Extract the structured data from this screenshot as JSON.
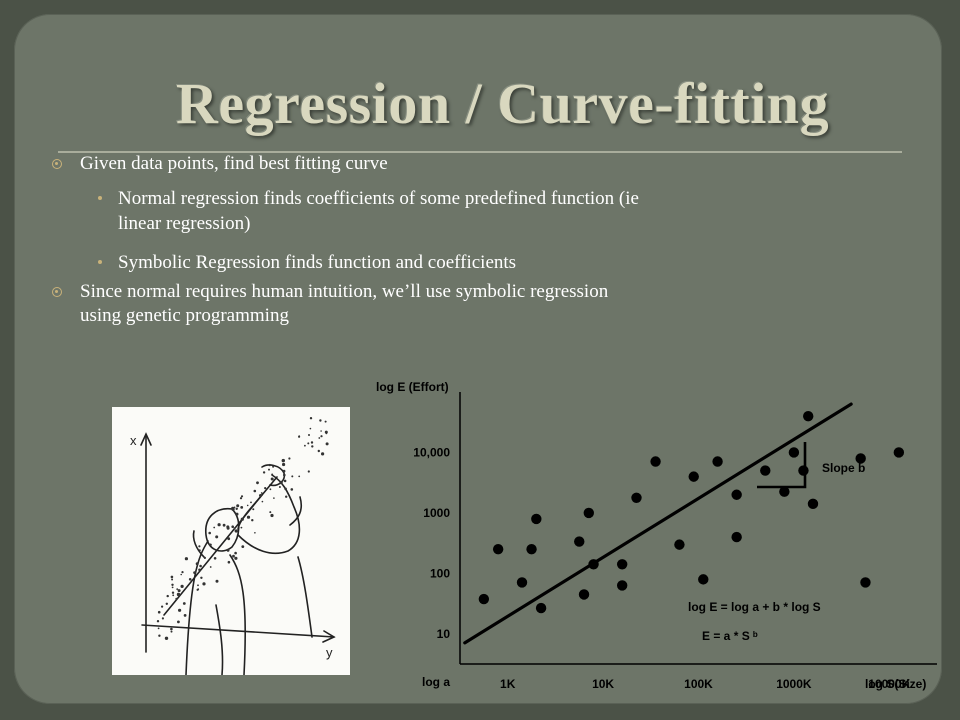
{
  "slide": {
    "title": "Regression / Curve-fitting",
    "bullets": [
      {
        "level": 1,
        "text": "Given data points, find best fitting curve"
      },
      {
        "level": 2,
        "lines": [
          "Normal regression finds coefficients of some predefined function (ie",
          "linear regression)"
        ]
      },
      {
        "level": 2,
        "lines": [
          "Symbolic Regression finds function and coefficients"
        ]
      },
      {
        "level": 1,
        "lines": [
          "Since normal requires human intuition, we’ll use symbolic regression",
          "using genetic programming"
        ]
      }
    ]
  },
  "sketch": {
    "axis_x_label": "y",
    "axis_y_label": "x"
  },
  "chart_data": {
    "type": "scatter",
    "ylabel": "log E (Effort)",
    "xlabel": "log S(Size)",
    "x_ticks": [
      "1K",
      "10K",
      "100K",
      "1000K",
      "10000K"
    ],
    "y_ticks": [
      "10,000",
      "1000",
      "100",
      "10",
      "log a"
    ],
    "annotations": [
      "Slope b",
      "log E = log a + b * log S",
      "E = a * S ᵇ"
    ],
    "fit_line": {
      "start": [
        0.1,
        -0.3
      ],
      "end": [
        8.2,
        7.6
      ]
    },
    "points": [
      [
        0.5,
        1.15
      ],
      [
        0.8,
        2.8
      ],
      [
        1.3,
        1.7
      ],
      [
        1.5,
        2.8
      ],
      [
        1.6,
        3.8
      ],
      [
        1.7,
        0.85
      ],
      [
        2.5,
        3.05
      ],
      [
        2.6,
        1.3
      ],
      [
        2.7,
        4.0
      ],
      [
        2.8,
        2.3
      ],
      [
        3.4,
        2.3
      ],
      [
        3.4,
        1.6
      ],
      [
        3.7,
        4.5
      ],
      [
        4.1,
        5.7
      ],
      [
        4.6,
        2.95
      ],
      [
        4.9,
        5.2
      ],
      [
        5.1,
        1.8
      ],
      [
        5.4,
        5.7
      ],
      [
        5.8,
        4.6
      ],
      [
        5.8,
        3.2
      ],
      [
        6.4,
        5.4
      ],
      [
        6.8,
        4.7
      ],
      [
        7.0,
        6.0
      ],
      [
        7.2,
        5.4
      ],
      [
        7.3,
        7.2
      ],
      [
        7.4,
        4.3
      ],
      [
        8.4,
        5.8
      ],
      [
        8.5,
        1.7
      ],
      [
        9.2,
        6.0
      ]
    ],
    "xlim": [
      0,
      10
    ],
    "ylim": [
      -1,
      8
    ],
    "x_tick_positions": [
      1,
      3,
      5,
      7,
      9
    ],
    "y_tick_positions": [
      6,
      4,
      2,
      0,
      -1.6
    ],
    "color": "#000000"
  },
  "colors": {
    "panel": "#6d7568",
    "title": "#d9d8bf",
    "accent": "#c9b27a"
  }
}
